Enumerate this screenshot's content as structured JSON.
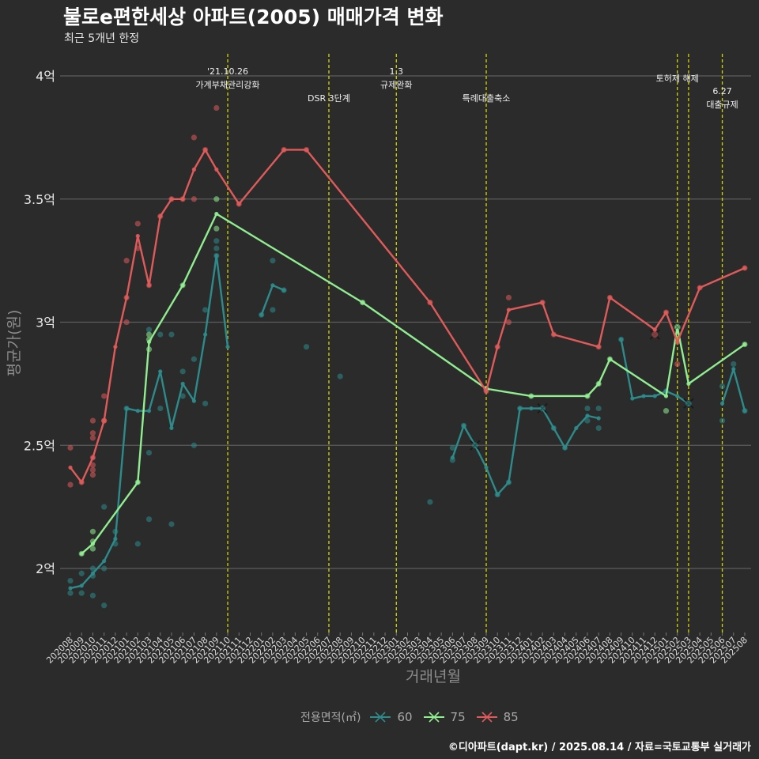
{
  "title": "불로e편한세상 아파트(2005) 매매가격 변화",
  "subtitle": "최근 5개년 한정",
  "caption": "©디아파트(dapt.kr) / 2025.08.14 / 자료=국토교통부 실거래가",
  "legend": {
    "title": "전용면적(㎡)",
    "items": [
      {
        "label": "60",
        "color": "#2e8b8b"
      },
      {
        "label": "75",
        "color": "#90ee90"
      },
      {
        "label": "85",
        "color": "#e05a5a"
      }
    ]
  },
  "chart_data": {
    "type": "line",
    "xlabel": "거래년월",
    "ylabel": "평균가(원)",
    "ylim": [
      1.74,
      4.09
    ],
    "yticks": [
      {
        "v": 2.0,
        "label": "2억"
      },
      {
        "v": 2.5,
        "label": "2.5억"
      },
      {
        "v": 3.0,
        "label": "3억"
      },
      {
        "v": 3.5,
        "label": "3.5억"
      },
      {
        "v": 4.0,
        "label": "4억"
      }
    ],
    "categories": [
      "202008",
      "202009",
      "202010",
      "202011",
      "202012",
      "202101",
      "202102",
      "202103",
      "202104",
      "202105",
      "202106",
      "202107",
      "202108",
      "202109",
      "202110",
      "202111",
      "202112",
      "202201",
      "202202",
      "202203",
      "202204",
      "202205",
      "202206",
      "202207",
      "202208",
      "202209",
      "202210",
      "202211",
      "202212",
      "202301",
      "202302",
      "202303",
      "202304",
      "202305",
      "202306",
      "202307",
      "202308",
      "202309",
      "202310",
      "202311",
      "202312",
      "202401",
      "202402",
      "202403",
      "202404",
      "202405",
      "202406",
      "202407",
      "202408",
      "202409",
      "202410",
      "202411",
      "202412",
      "202501",
      "202502",
      "202503",
      "202504",
      "202505",
      "202506",
      "202507",
      "202508"
    ],
    "grid": true,
    "series": [
      {
        "name": "60",
        "color": "#2e8b8b",
        "line": [
          [
            0,
            1.92
          ],
          [
            1,
            1.93
          ],
          [
            2,
            1.98
          ],
          [
            3,
            2.03
          ],
          [
            4,
            2.12
          ],
          [
            5,
            2.65
          ],
          [
            6,
            2.64
          ],
          [
            7,
            2.64
          ],
          [
            8,
            2.8
          ],
          [
            9,
            2.57
          ],
          [
            10,
            2.75
          ],
          [
            11,
            2.68
          ],
          [
            12,
            2.95
          ],
          [
            13,
            3.27
          ],
          [
            14,
            2.9
          ],
          [
            null,
            null
          ],
          [
            17,
            3.03
          ],
          [
            18,
            3.15
          ],
          [
            19,
            3.13
          ],
          [
            null,
            null
          ],
          [
            34,
            2.45
          ],
          [
            35,
            2.58
          ],
          [
            36,
            2.5
          ],
          [
            37,
            2.41
          ],
          [
            38,
            2.3
          ],
          [
            39,
            2.35
          ],
          [
            40,
            2.65
          ],
          [
            41,
            2.65
          ],
          [
            42,
            2.65
          ],
          [
            43,
            2.57
          ],
          [
            44,
            2.49
          ],
          [
            45,
            2.57
          ],
          [
            46,
            2.62
          ],
          [
            47,
            2.61
          ],
          [
            null,
            null
          ],
          [
            49,
            2.93
          ],
          [
            50,
            2.69
          ],
          [
            51,
            2.7
          ],
          [
            52,
            2.7
          ],
          [
            53,
            2.72
          ],
          [
            54,
            2.7
          ],
          [
            55,
            2.67
          ],
          [
            null,
            null
          ],
          [
            58,
            2.67
          ],
          [
            59,
            2.81
          ],
          [
            60,
            2.64
          ]
        ],
        "points": [
          [
            0,
            1.9
          ],
          [
            0,
            1.95
          ],
          [
            1,
            1.9
          ],
          [
            1,
            1.98
          ],
          [
            2,
            1.89
          ],
          [
            2,
            1.97
          ],
          [
            2,
            2.0
          ],
          [
            3,
            1.85
          ],
          [
            3,
            2.0
          ],
          [
            3,
            2.25
          ],
          [
            4,
            2.1
          ],
          [
            4,
            2.15
          ],
          [
            5,
            2.65
          ],
          [
            6,
            2.1
          ],
          [
            7,
            2.97
          ],
          [
            7,
            2.47
          ],
          [
            7,
            2.2
          ],
          [
            8,
            2.95
          ],
          [
            8,
            2.65
          ],
          [
            9,
            2.95
          ],
          [
            9,
            2.18
          ],
          [
            10,
            2.8
          ],
          [
            10,
            2.7
          ],
          [
            11,
            2.85
          ],
          [
            11,
            2.5
          ],
          [
            12,
            3.05
          ],
          [
            12,
            2.67
          ],
          [
            13,
            3.33
          ],
          [
            13,
            3.3
          ],
          [
            13,
            3.27
          ],
          [
            17,
            3.03
          ],
          [
            18,
            3.25
          ],
          [
            18,
            3.05
          ],
          [
            19,
            3.13
          ],
          [
            21,
            2.9
          ],
          [
            24,
            2.78
          ],
          [
            32,
            2.27
          ],
          [
            34,
            2.44
          ],
          [
            34,
            2.49
          ],
          [
            35,
            2.58
          ],
          [
            38,
            2.3
          ],
          [
            39,
            2.35
          ],
          [
            40,
            2.65
          ],
          [
            43,
            2.57
          ],
          [
            44,
            2.49
          ],
          [
            46,
            2.6
          ],
          [
            46,
            2.65
          ],
          [
            47,
            2.57
          ],
          [
            47,
            2.65
          ],
          [
            49,
            2.93
          ],
          [
            53,
            2.72
          ],
          [
            58,
            2.6
          ],
          [
            58,
            2.74
          ],
          [
            59,
            2.83
          ],
          [
            60,
            2.64
          ]
        ],
        "crosses": [
          [
            36,
            2.5
          ],
          [
            42,
            2.65
          ],
          [
            55,
            2.67
          ]
        ]
      },
      {
        "name": "75",
        "color": "#90ee90",
        "line": [
          [
            1,
            2.06
          ],
          [
            2,
            2.1
          ],
          [
            6,
            2.35
          ],
          [
            7,
            2.92
          ],
          [
            10,
            3.15
          ],
          [
            13,
            3.44
          ],
          [
            26,
            3.08
          ],
          [
            37,
            2.73
          ],
          [
            41,
            2.7
          ],
          [
            46,
            2.7
          ],
          [
            47,
            2.75
          ],
          [
            48,
            2.85
          ],
          [
            53,
            2.7
          ],
          [
            54,
            2.98
          ],
          [
            55,
            2.75
          ],
          [
            60,
            2.91
          ]
        ],
        "points": [
          [
            1,
            2.06
          ],
          [
            2,
            2.08
          ],
          [
            2,
            2.15
          ],
          [
            2,
            2.11
          ],
          [
            6,
            2.35
          ],
          [
            7,
            2.95
          ],
          [
            7,
            2.89
          ],
          [
            7,
            2.93
          ],
          [
            10,
            3.15
          ],
          [
            13,
            3.5
          ],
          [
            13,
            3.38
          ],
          [
            26,
            3.08
          ],
          [
            37,
            2.73
          ],
          [
            41,
            2.7
          ],
          [
            46,
            2.7
          ],
          [
            47,
            2.75
          ],
          [
            48,
            2.85
          ],
          [
            53,
            2.64
          ],
          [
            60,
            2.91
          ]
        ],
        "crosses": [
          [
            54,
            2.98
          ]
        ]
      },
      {
        "name": "85",
        "color": "#e05a5a",
        "line": [
          [
            0,
            2.41
          ],
          [
            1,
            2.35
          ],
          [
            2,
            2.45
          ],
          [
            3,
            2.6
          ],
          [
            4,
            2.9
          ],
          [
            5,
            3.1
          ],
          [
            6,
            3.35
          ],
          [
            7,
            3.15
          ],
          [
            8,
            3.43
          ],
          [
            9,
            3.5
          ],
          [
            10,
            3.5
          ],
          [
            11,
            3.62
          ],
          [
            12,
            3.7
          ],
          [
            13,
            3.62
          ],
          [
            15,
            3.48
          ],
          [
            19,
            3.7
          ],
          [
            21,
            3.7
          ],
          [
            32,
            3.08
          ],
          [
            37,
            2.72
          ],
          [
            38,
            2.9
          ],
          [
            39,
            3.05
          ],
          [
            42,
            3.08
          ],
          [
            43,
            2.95
          ],
          [
            47,
            2.9
          ],
          [
            48,
            3.1
          ],
          [
            52,
            2.97
          ],
          [
            53,
            3.04
          ],
          [
            54,
            2.92
          ],
          [
            56,
            3.14
          ],
          [
            60,
            3.22
          ]
        ],
        "points": [
          [
            0,
            2.34
          ],
          [
            0,
            2.49
          ],
          [
            1,
            2.35
          ],
          [
            2,
            2.6
          ],
          [
            2,
            2.55
          ],
          [
            2,
            2.53
          ],
          [
            2,
            2.45
          ],
          [
            2,
            2.42
          ],
          [
            2,
            2.4
          ],
          [
            2,
            2.38
          ],
          [
            3,
            2.7
          ],
          [
            3,
            2.6
          ],
          [
            3,
            2.6
          ],
          [
            5,
            3.0
          ],
          [
            5,
            3.1
          ],
          [
            5,
            3.25
          ],
          [
            6,
            3.4
          ],
          [
            6,
            3.3
          ],
          [
            7,
            3.15
          ],
          [
            8,
            3.43
          ],
          [
            9,
            3.5
          ],
          [
            10,
            3.5
          ],
          [
            11,
            3.75
          ],
          [
            11,
            3.5
          ],
          [
            12,
            3.7
          ],
          [
            13,
            3.87
          ],
          [
            15,
            3.48
          ],
          [
            19,
            3.7
          ],
          [
            21,
            3.7
          ],
          [
            32,
            3.08
          ],
          [
            37,
            2.72
          ],
          [
            38,
            2.9
          ],
          [
            39,
            3.1
          ],
          [
            39,
            3.0
          ],
          [
            42,
            3.08
          ],
          [
            43,
            2.95
          ],
          [
            47,
            2.9
          ],
          [
            48,
            3.1
          ],
          [
            53,
            3.04
          ],
          [
            54,
            2.83
          ],
          [
            54,
            2.92
          ],
          [
            56,
            3.14
          ],
          [
            60,
            3.22
          ]
        ],
        "crosses": [
          [
            52,
            2.95
          ]
        ]
      }
    ],
    "annotations": [
      {
        "x": 14,
        "lines": [
          "'21.10.26",
          "가계부채관리강화"
        ]
      },
      {
        "x": 23,
        "lines": [
          "DSR 3단계"
        ]
      },
      {
        "x": 29,
        "lines": [
          "1.3",
          "규제완화"
        ]
      },
      {
        "x": 37,
        "lines": [
          "특례대출축소"
        ]
      },
      {
        "x": 54,
        "lines": [
          "토허제 해제"
        ]
      },
      {
        "x": 55,
        "lines": []
      },
      {
        "x": 58,
        "lines": [
          "6.27",
          "대출규제"
        ]
      }
    ]
  }
}
